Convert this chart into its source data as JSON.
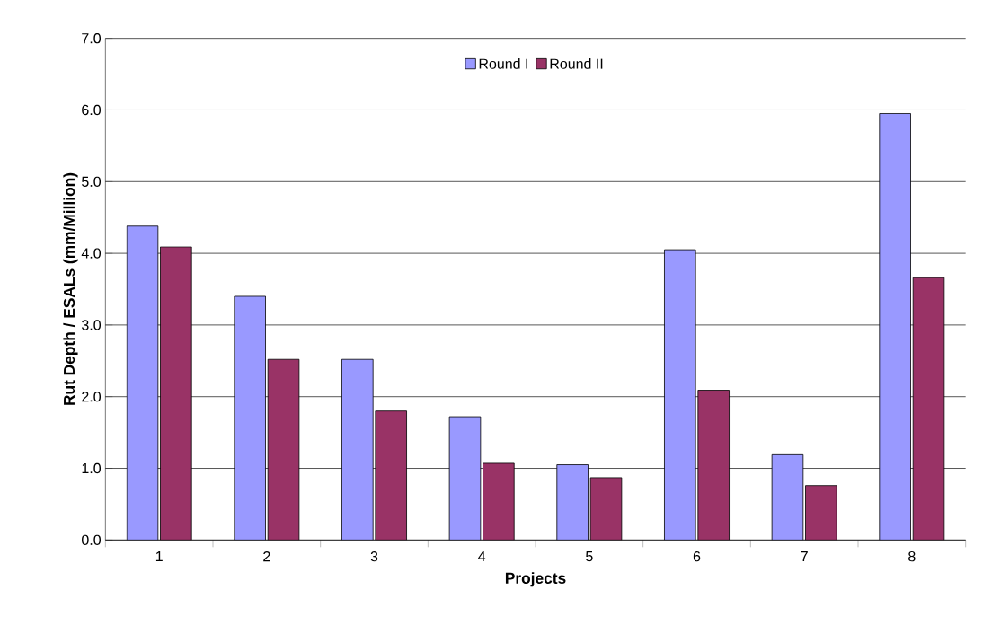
{
  "chart_data": {
    "type": "bar",
    "xlabel": "Projects",
    "ylabel": "Rut Depth / ESALs (mm/Million)",
    "categories": [
      "1",
      "2",
      "3",
      "4",
      "5",
      "6",
      "7",
      "8"
    ],
    "series": [
      {
        "name": "Round I",
        "color": "#9999ff",
        "values": [
          4.38,
          3.4,
          2.52,
          1.72,
          1.05,
          4.05,
          1.19,
          5.95
        ]
      },
      {
        "name": "Round II",
        "color": "#993366",
        "values": [
          4.09,
          2.52,
          1.8,
          1.07,
          0.87,
          2.09,
          0.76,
          3.66
        ]
      }
    ],
    "ylim": [
      0,
      7
    ],
    "yticks": [
      {
        "value": 0,
        "label": "0.0"
      },
      {
        "value": 1,
        "label": "1.0"
      },
      {
        "value": 2,
        "label": "2.0"
      },
      {
        "value": 3,
        "label": "3.0"
      },
      {
        "value": 4,
        "label": "4.0"
      },
      {
        "value": 5,
        "label": "5.0"
      },
      {
        "value": 6,
        "label": "6.0"
      },
      {
        "value": 7,
        "label": "7.0"
      }
    ],
    "grid": "y",
    "legend": "top"
  }
}
